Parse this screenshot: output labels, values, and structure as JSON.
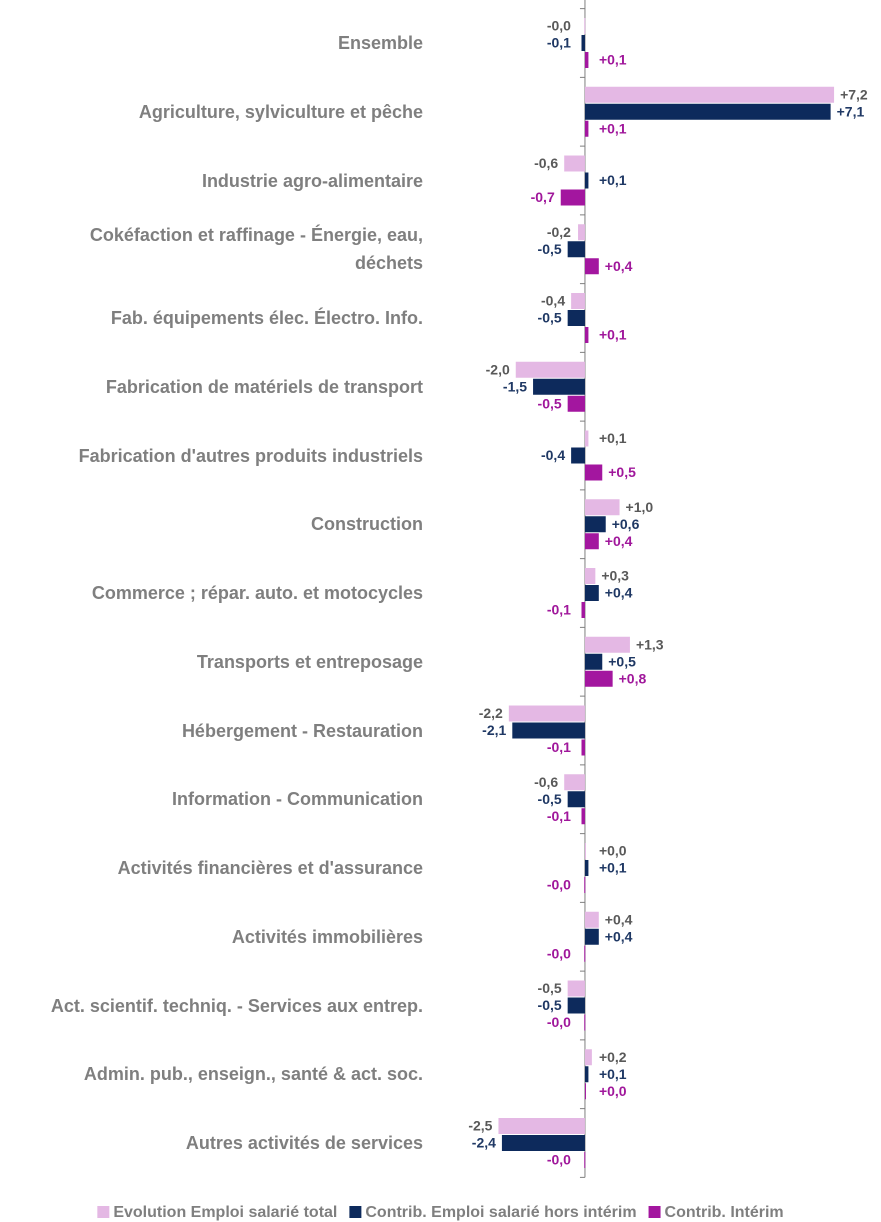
{
  "chart_data": {
    "type": "hbar",
    "categories": [
      "Ensemble",
      "Agriculture, sylviculture et pêche",
      "Industrie agro-alimentaire",
      "Cokéfaction et raffinage - Énergie, eau,\ndéchets",
      "Fab. équipements élec. Électro. Info.",
      "Fabrication de matériels de transport",
      "Fabrication d'autres produits industriels",
      "Construction",
      "Commerce ; répar. auto. et  motocycles",
      "Transports et entreposage",
      "Hébergement - Restauration",
      "Information - Communication",
      "Activités financières et d'assurance",
      "Activités immobilières",
      "Act. scientif. techniq. - Services aux entrep.",
      "Admin. pub., enseign., santé & act. soc.",
      "Autres activités de services"
    ],
    "series": [
      {
        "name": "Evolution Emploi salarié total",
        "color": "#e4b8e4",
        "label_color": "#595959",
        "values": [
          -0.02,
          7.2,
          -0.6,
          -0.2,
          -0.4,
          -2.0,
          0.1,
          1.0,
          0.3,
          1.3,
          -2.2,
          -0.6,
          0.02,
          0.4,
          -0.5,
          0.2,
          -2.5
        ],
        "value_labels": [
          "-0,0",
          "+7,2",
          "-0,6",
          "-0,2",
          "-0,4",
          "-2,0",
          "+0,1",
          "+1,0",
          "+0,3",
          "+1,3",
          "-2,2",
          "-0,6",
          "+0,0",
          "+0,4",
          "-0,5",
          "+0,2",
          "-2,5"
        ]
      },
      {
        "name": "Contrib. Emploi salarié hors intérim",
        "color": "#0d2a5c",
        "label_color": "#1f3864",
        "values": [
          -0.1,
          7.1,
          0.1,
          -0.5,
          -0.5,
          -1.5,
          -0.4,
          0.6,
          0.4,
          0.5,
          -2.1,
          -0.5,
          0.1,
          0.4,
          -0.5,
          0.1,
          -2.4
        ],
        "value_labels": [
          "-0,1",
          "+7,1",
          "+0,1",
          "-0,5",
          "-0,5",
          "-1,5",
          "-0,4",
          "+0,6",
          "+0,4",
          "+0,5",
          "-2,1",
          "-0,5",
          "+0,1",
          "+0,4",
          "-0,5",
          "+0,1",
          "-2,4"
        ]
      },
      {
        "name": "Contrib. Intérim",
        "color": "#a3169f",
        "label_color": "#a0179b",
        "values": [
          0.1,
          0.1,
          -0.7,
          0.4,
          0.1,
          -0.5,
          0.5,
          0.4,
          -0.1,
          0.8,
          -0.1,
          -0.1,
          -0.02,
          -0.02,
          -0.02,
          0.02,
          -0.02
        ],
        "value_labels": [
          "+0,1",
          "+0,1",
          "-0,7",
          "+0,4",
          "+0,1",
          "-0,5",
          "+0,5",
          "+0,4",
          "-0,1",
          "+0,8",
          "-0,1",
          "-0,1",
          "-0,0",
          "-0,0",
          "-0,0",
          "+0,0",
          "-0,0"
        ]
      }
    ],
    "xlim": [
      -2.6,
      7.4
    ],
    "legend": "bottom"
  }
}
